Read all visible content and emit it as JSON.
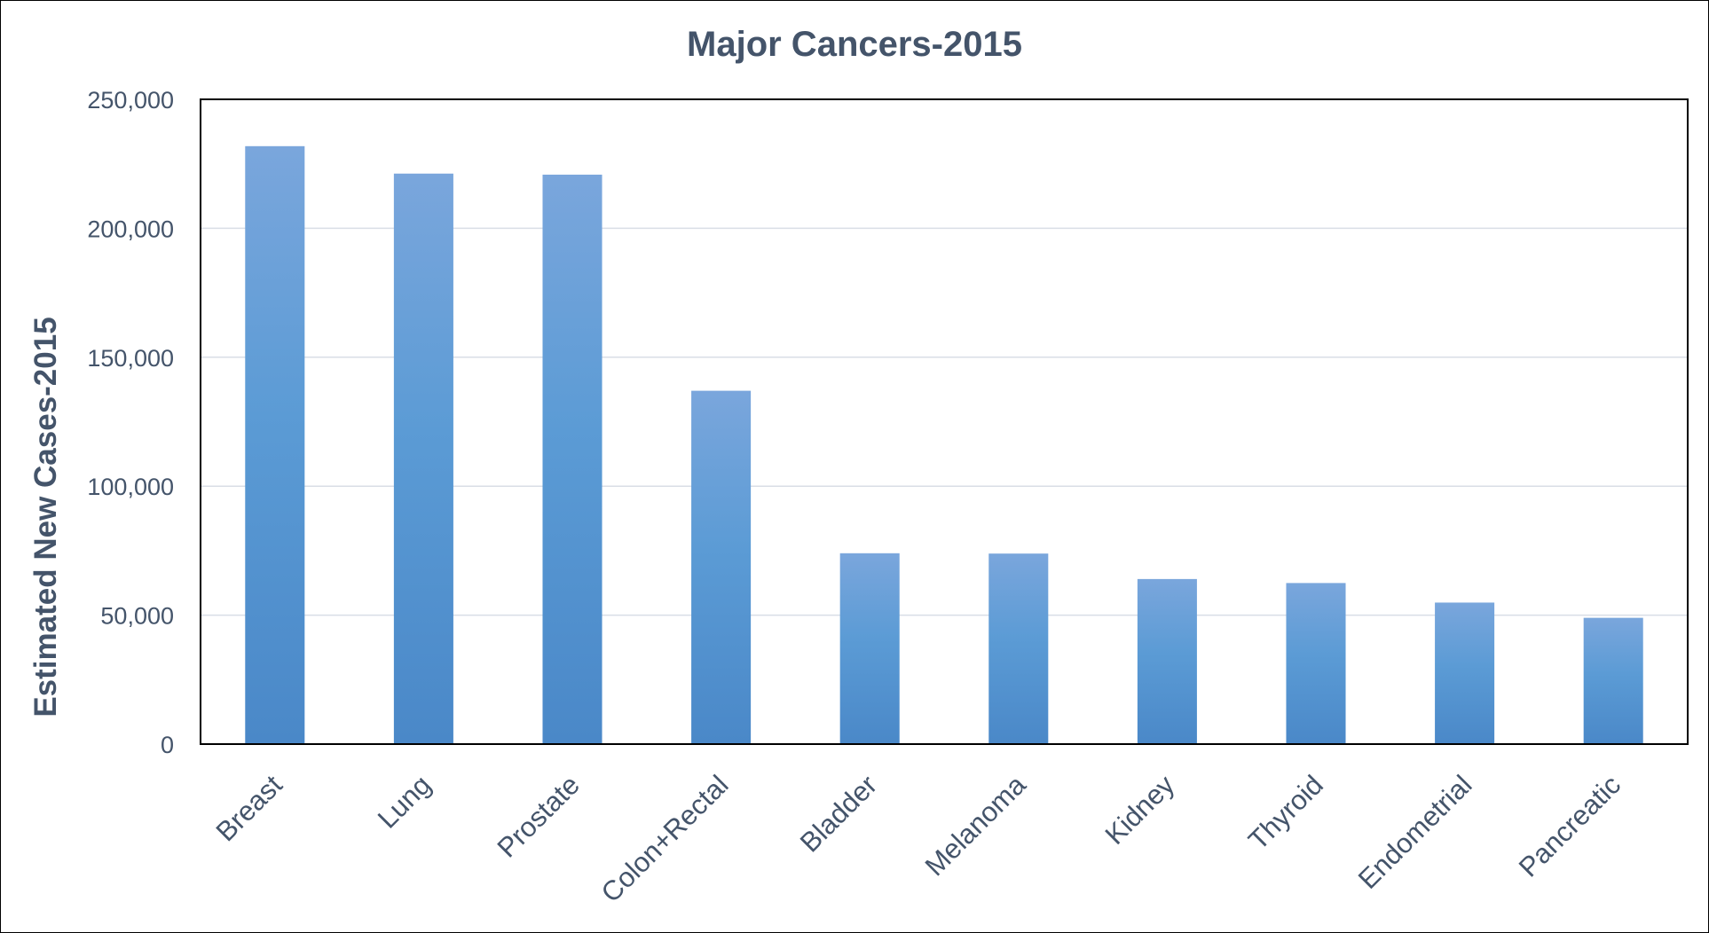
{
  "chart_data": {
    "type": "bar",
    "title": "Major Cancers-2015",
    "xlabel": "",
    "ylabel": "Estimated New Cases-2015",
    "ylim": [
      0,
      250000
    ],
    "yticks": [
      "0",
      "50,000",
      "100,000",
      "150,000",
      "200,000",
      "250,000"
    ],
    "ytick_values": [
      0,
      50000,
      100000,
      150000,
      200000,
      250000
    ],
    "grid": true,
    "legend": "none",
    "categories": [
      "Breast",
      "Lung",
      "Prostate",
      "Colon+Rectal",
      "Bladder",
      "Melanoma",
      "Kidney",
      "Thyroid",
      "Endometrial",
      "Pancreatic"
    ],
    "values": [
      231840,
      221200,
      220800,
      137000,
      74000,
      73870,
      64000,
      62450,
      54870,
      48960
    ],
    "colors": {
      "bar_top": "#7aa6dc",
      "bar_mid": "#5b9bd5",
      "bar_bottom": "#4a88c8",
      "grid": "#d9dee6",
      "text": "#44546a",
      "axis": "#000000"
    }
  }
}
